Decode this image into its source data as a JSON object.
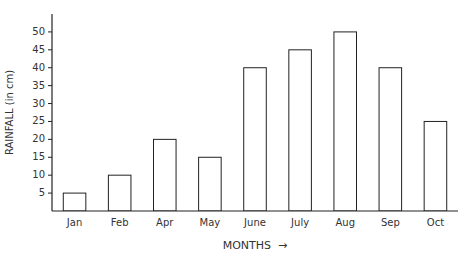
{
  "chart_data": {
    "type": "bar",
    "categories": [
      "Jan",
      "Feb",
      "Apr",
      "May",
      "June",
      "July",
      "Aug",
      "Sep",
      "Oct"
    ],
    "values": [
      5,
      10,
      20,
      15,
      40,
      45,
      50,
      40,
      25
    ],
    "color": "white",
    "xlabel": "MONTHS  →",
    "ylabel": "RAINFALL (in cm)",
    "ylim": [
      0,
      55
    ],
    "yticks": [
      5,
      10,
      15,
      20,
      25,
      30,
      35,
      40,
      45,
      50
    ]
  }
}
